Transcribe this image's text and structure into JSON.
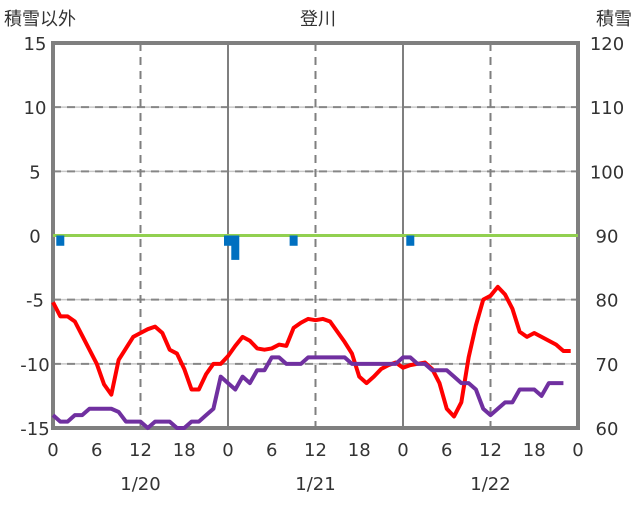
{
  "chart_data": {
    "type": "line",
    "title": "登川",
    "ylabel_left": "積雪以外",
    "ylabel_right": "積雪",
    "ylim_left": [
      -15,
      15
    ],
    "ylim_right": [
      60,
      120
    ],
    "yticks_left": [
      "15",
      "10",
      "5",
      "0",
      "-5",
      "-10",
      "-15"
    ],
    "yticks_right": [
      "120",
      "110",
      "100",
      "90",
      "80",
      "70",
      "60"
    ],
    "xticks": [
      "0",
      "6",
      "12",
      "18",
      "0",
      "6",
      "12",
      "18",
      "0",
      "6",
      "12",
      "18",
      "0"
    ],
    "date_labels": [
      "1/20",
      "1/21",
      "1/22"
    ],
    "x_hours": "0-72 hourly",
    "grid": true,
    "series": [
      {
        "name": "temperature",
        "axis": "left",
        "color": "#ff0000",
        "values": [
          -5.2,
          -6.3,
          -6.3,
          -6.7,
          -7.8,
          -8.9,
          -10,
          -11.6,
          -12.4,
          -9.7,
          -8.8,
          -7.9,
          -7.6,
          -7.3,
          -7.1,
          -7.6,
          -8.9,
          -9.2,
          -10.4,
          -12,
          -12,
          -10.8,
          -10,
          -10,
          -9.4,
          -8.6,
          -7.9,
          -8.2,
          -8.8,
          -8.9,
          -8.8,
          -8.5,
          -8.6,
          -7.2,
          -6.8,
          -6.5,
          -6.6,
          -6.5,
          -6.7,
          -7.5,
          -8.3,
          -9.2,
          -11,
          -11.5,
          -11,
          -10.4,
          -10.1,
          -9.9,
          -10.3,
          -10.1,
          -10,
          -9.9,
          -10.4,
          -11.5,
          -13.5,
          -14.1,
          -13,
          -9.5,
          -7,
          -5,
          -4.7,
          -4,
          -4.6,
          -5.7,
          -7.5,
          -7.9,
          -7.6,
          -7.9,
          -8.2,
          -8.5,
          -9,
          -9
        ]
      },
      {
        "name": "snow-depth",
        "axis": "right",
        "color": "#7030a0",
        "values": [
          62,
          61,
          61,
          62,
          62,
          63,
          63,
          63,
          63,
          62.5,
          61,
          61,
          61,
          60,
          61,
          61,
          61,
          60,
          60,
          61,
          61,
          62,
          63,
          68,
          67,
          66,
          68,
          67,
          69,
          69,
          71,
          71,
          70,
          70,
          70,
          71,
          71,
          71,
          71,
          71,
          71,
          70,
          70,
          70,
          70,
          70,
          70,
          70,
          71,
          71,
          70,
          70,
          69,
          69,
          69,
          68,
          67,
          67,
          66,
          63,
          62,
          63,
          64,
          64,
          66,
          66,
          66,
          65,
          67,
          67,
          67
        ]
      },
      {
        "name": "zero-line",
        "axis": "left",
        "color": "#92d050",
        "values": [
          0,
          0
        ]
      },
      {
        "name": "precipitation",
        "axis": "left",
        "color": "#0070c0",
        "type": "bar",
        "bars": [
          {
            "hour": 1,
            "value": -0.8
          },
          {
            "hour": 24,
            "value": -0.8
          },
          {
            "hour": 25,
            "value": -1.9
          },
          {
            "hour": 33,
            "value": -0.8
          },
          {
            "hour": 49,
            "value": -0.8
          }
        ]
      }
    ]
  }
}
